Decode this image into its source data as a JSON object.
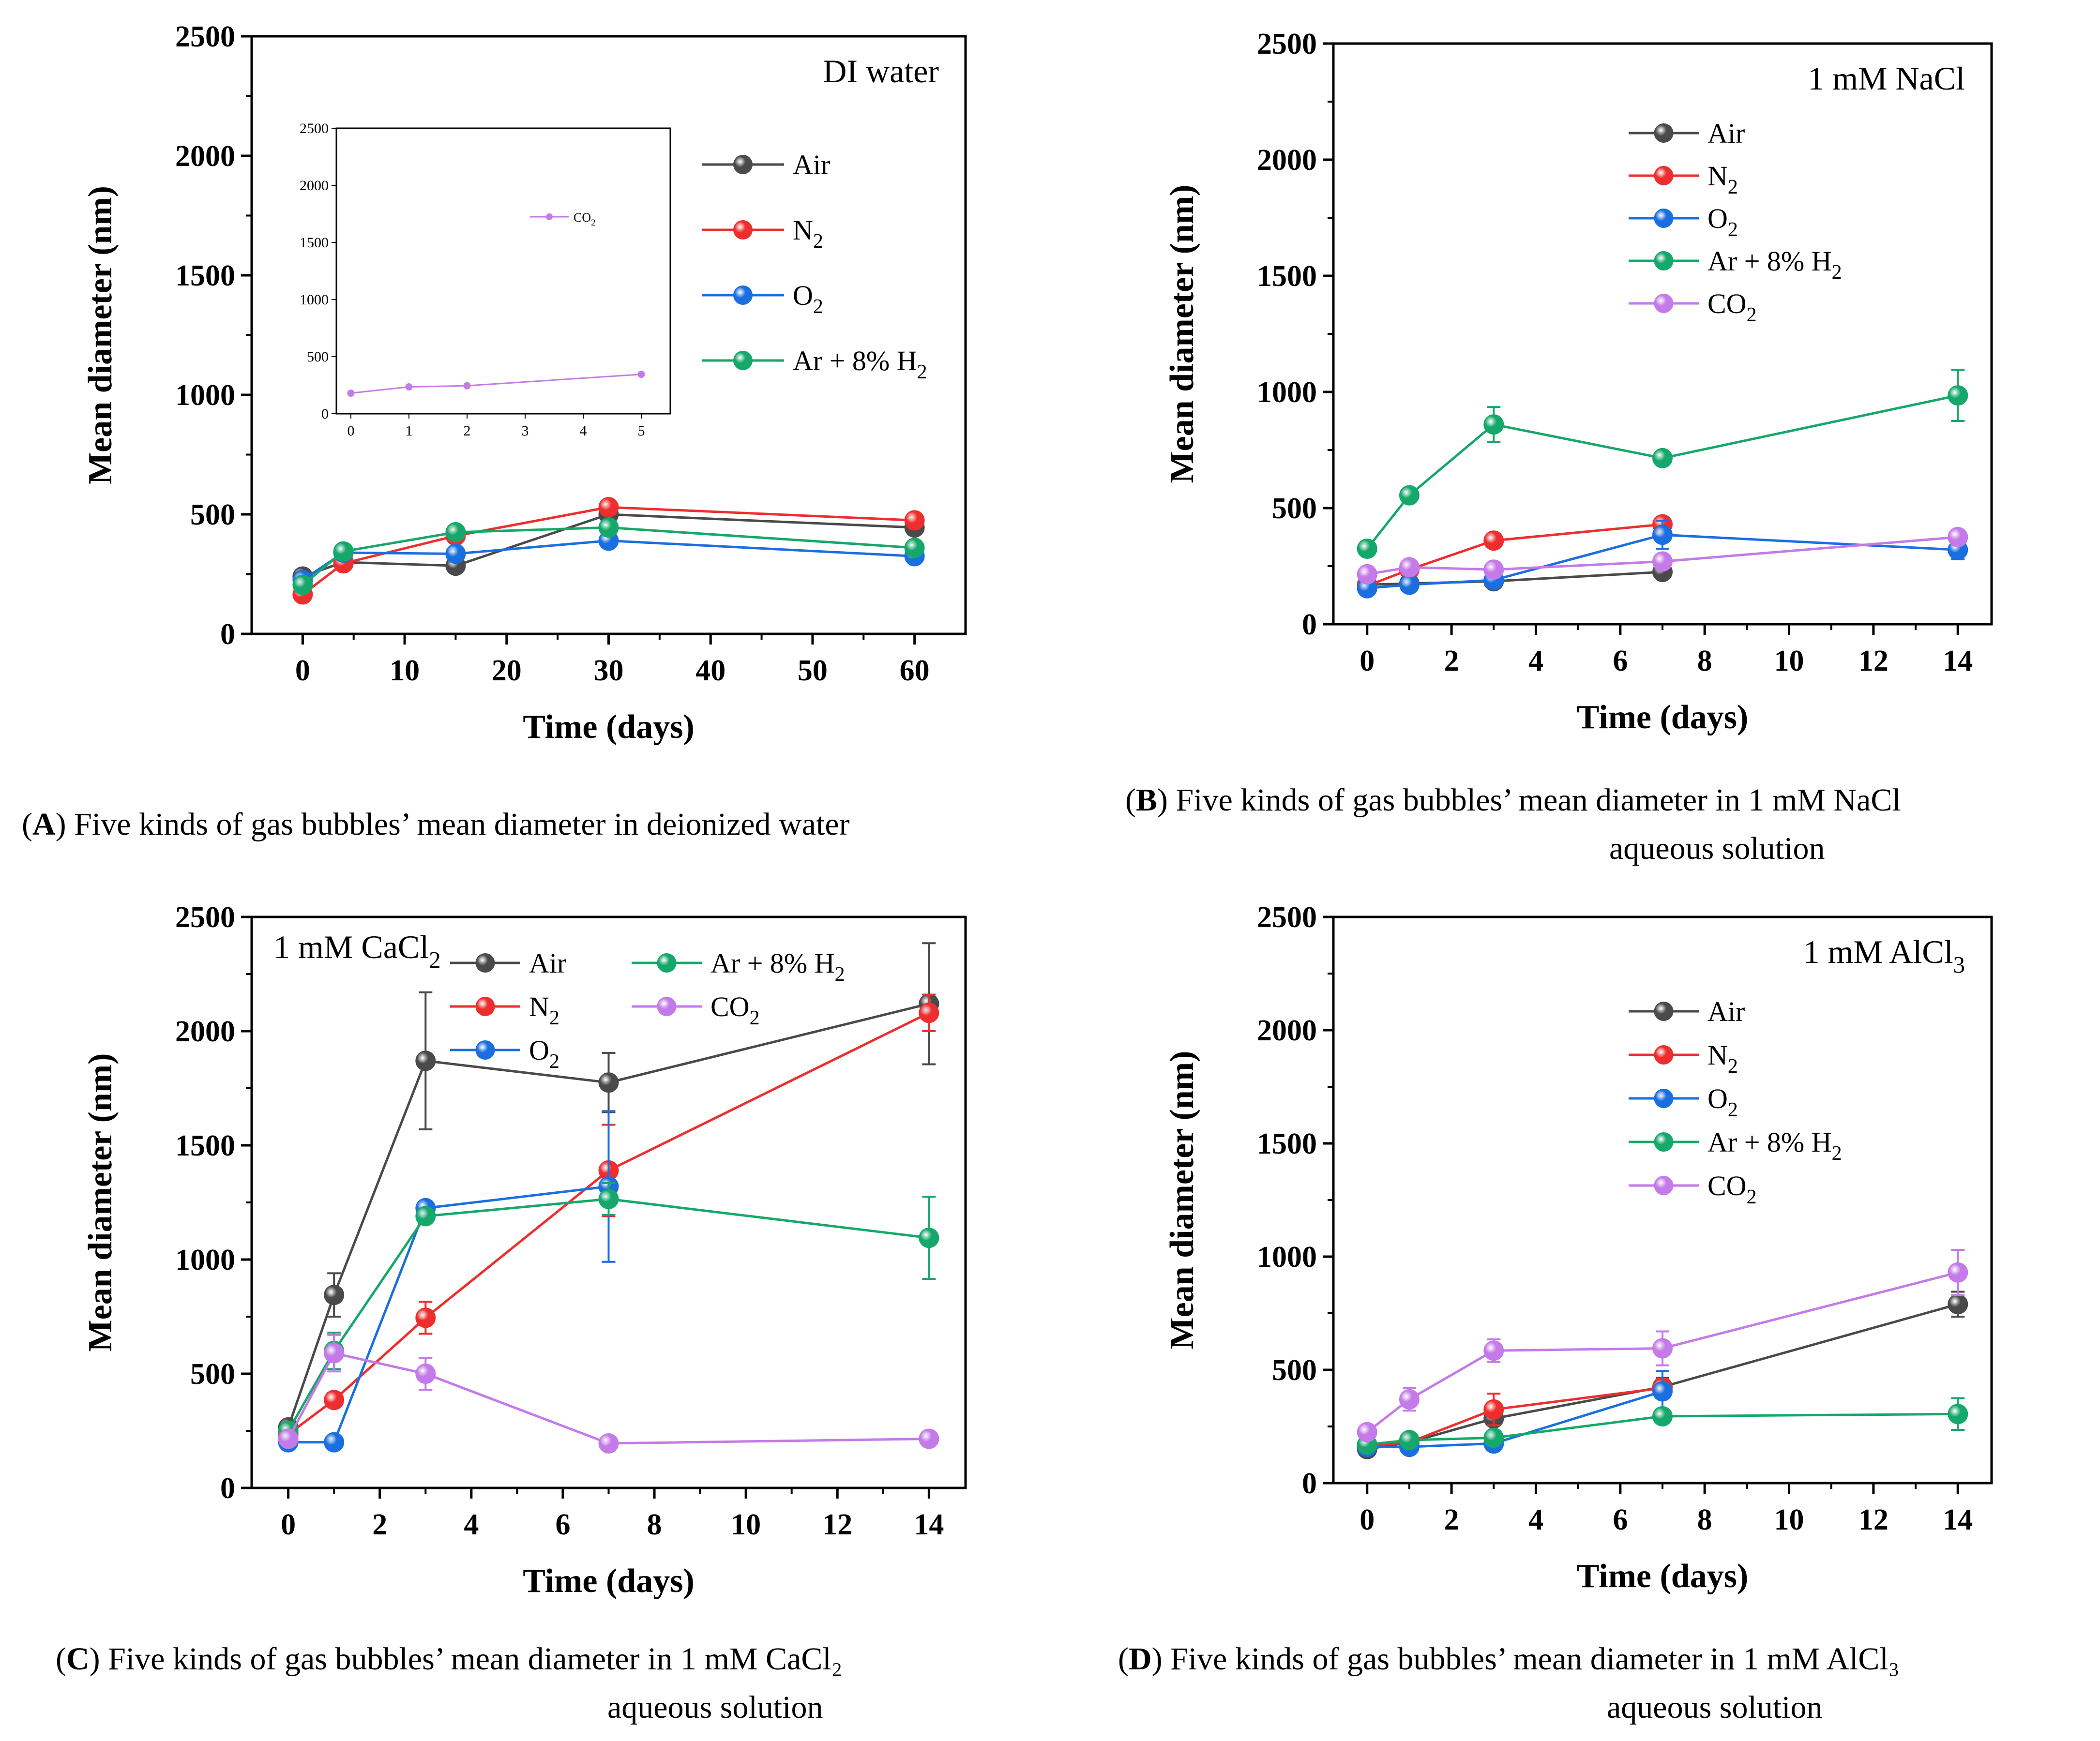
{
  "colors": {
    "Air": "#4a4a4a",
    "N2": "#ee2e2e",
    "O2": "#1a6fe0",
    "ArH2": "#15a86a",
    "CO2": "#c47ae8"
  },
  "chart_data": [
    {
      "id": "A",
      "type": "line",
      "title": "DI water",
      "xlabel": "Time (days)",
      "ylabel": "Mean diameter (nm)",
      "xlim": [
        -5,
        65
      ],
      "ylim": [
        0,
        2500
      ],
      "xticks": [
        "0",
        "10",
        "20",
        "30",
        "40",
        "50",
        "60"
      ],
      "yticks": [
        "0",
        "500",
        "1000",
        "1500",
        "2000",
        "2500"
      ],
      "legend_position": "right",
      "series": [
        {
          "name": "Air",
          "key": "Air",
          "x": [
            0,
            4,
            15,
            30,
            60
          ],
          "y": [
            240,
            300,
            285,
            500,
            445
          ],
          "err": [
            15,
            20,
            15,
            25,
            20
          ]
        },
        {
          "name": "N2",
          "key": "N2",
          "x": [
            0,
            4,
            15,
            30,
            60
          ],
          "y": [
            165,
            295,
            410,
            530,
            475
          ],
          "err": [
            10,
            15,
            20,
            20,
            20
          ]
        },
        {
          "name": "O2",
          "key": "O2",
          "x": [
            0,
            4,
            15,
            30,
            60
          ],
          "y": [
            225,
            340,
            335,
            390,
            325
          ],
          "err": [
            10,
            15,
            15,
            20,
            15
          ]
        },
        {
          "name": "Ar + 8% H2",
          "key": "ArH2",
          "x": [
            0,
            4,
            15,
            30,
            60
          ],
          "y": [
            205,
            345,
            425,
            445,
            360
          ],
          "err": [
            10,
            25,
            20,
            25,
            20
          ]
        }
      ],
      "inset": {
        "xlim": [
          -0.25,
          5.5
        ],
        "ylim": [
          0,
          2500
        ],
        "xticks": [
          "0",
          "1",
          "2",
          "3",
          "4",
          "5"
        ],
        "yticks": [
          "0",
          "500",
          "1000",
          "1500",
          "2000",
          "2500"
        ],
        "series": [
          {
            "name": "CO2",
            "key": "CO2",
            "x": [
              0,
              1,
              2,
              5
            ],
            "y": [
              180,
              235,
              245,
              345
            ]
          }
        ]
      },
      "caption_letter": "A",
      "caption": [
        ") Five kinds of gas bubbles’ mean diameter in deionized water"
      ]
    },
    {
      "id": "B",
      "type": "line",
      "title": "1 mM NaCl",
      "xlabel": "Time (days)",
      "ylabel": "Mean diameter (nm)",
      "xlim": [
        -0.8,
        14.8
      ],
      "ylim": [
        0,
        2500
      ],
      "xticks": [
        "0",
        "2",
        "4",
        "6",
        "8",
        "10",
        "12",
        "14"
      ],
      "yticks": [
        "0",
        "500",
        "1000",
        "1500",
        "2000",
        "2500"
      ],
      "legend_position": "top-center",
      "series": [
        {
          "name": "Air",
          "key": "Air",
          "x": [
            0,
            1,
            3,
            7
          ],
          "y": [
            170,
            175,
            185,
            225
          ],
          "err": [
            15,
            15,
            15,
            20
          ]
        },
        {
          "name": "N2",
          "key": "N2",
          "x": [
            0,
            1,
            3,
            7
          ],
          "y": [
            165,
            235,
            360,
            430
          ],
          "err": [
            15,
            20,
            25,
            20
          ]
        },
        {
          "name": "O2",
          "key": "O2",
          "x": [
            0,
            1,
            3,
            7,
            14
          ],
          "y": [
            155,
            170,
            190,
            385,
            320
          ],
          "err": [
            15,
            15,
            20,
            60,
            40
          ]
        },
        {
          "name": "Ar + 8% H2",
          "key": "ArH2",
          "x": [
            0,
            1,
            3,
            7,
            14
          ],
          "y": [
            325,
            555,
            860,
            715,
            985
          ],
          "err": [
            20,
            25,
            75,
            25,
            110
          ]
        },
        {
          "name": "CO2",
          "key": "CO2",
          "x": [
            0,
            1,
            3,
            7,
            14
          ],
          "y": [
            215,
            245,
            235,
            270,
            375
          ],
          "err": [
            15,
            20,
            20,
            25,
            25
          ]
        }
      ],
      "caption_letter": "B",
      "caption": [
        ") Five kinds of gas bubbles’ mean diameter in 1 mM NaCl",
        "aqueous solution"
      ]
    },
    {
      "id": "C",
      "type": "line",
      "title": "1 mM CaCl2",
      "xlabel": "Time (days)",
      "ylabel": "Mean diameter (nm)",
      "xlim": [
        -0.8,
        14.8
      ],
      "ylim": [
        0,
        2500
      ],
      "xticks": [
        "0",
        "2",
        "4",
        "6",
        "8",
        "10",
        "12",
        "14"
      ],
      "yticks": [
        "0",
        "500",
        "1000",
        "1500",
        "2000",
        "2500"
      ],
      "legend_position": "top",
      "series": [
        {
          "name": "Air",
          "key": "Air",
          "x": [
            0,
            1,
            3,
            7,
            14
          ],
          "y": [
            265,
            845,
            1870,
            1775,
            2120
          ],
          "err": [
            20,
            95,
            300,
            130,
            265
          ]
        },
        {
          "name": "N2",
          "key": "N2",
          "x": [
            0,
            1,
            3,
            7,
            14
          ],
          "y": [
            235,
            385,
            745,
            1390,
            2080
          ],
          "err": [
            20,
            30,
            70,
            200,
            80
          ]
        },
        {
          "name": "O2",
          "key": "O2",
          "x": [
            0,
            1,
            3,
            7,
            14
          ],
          "y": [
            200,
            200,
            1225,
            1320,
            null
          ],
          "err": [
            10,
            10,
            25,
            330,
            0
          ]
        },
        {
          "name": "Ar + 8% H2",
          "key": "ArH2",
          "x": [
            0,
            1,
            3,
            7,
            14
          ],
          "y": [
            250,
            600,
            1190,
            1265,
            1095
          ],
          "err": [
            20,
            80,
            30,
            70,
            180
          ]
        },
        {
          "name": "CO2",
          "key": "CO2",
          "x": [
            0,
            1,
            3,
            7,
            14
          ],
          "y": [
            215,
            590,
            500,
            195,
            215
          ],
          "err": [
            15,
            80,
            70,
            10,
            15
          ]
        }
      ],
      "caption_letter": "C",
      "caption": [
        ") Five kinds of gas bubbles’ mean diameter in 1 mM CaCl₂",
        "aqueous solution"
      ]
    },
    {
      "id": "D",
      "type": "line",
      "title": "1 mM AlCl3",
      "xlabel": "Time (days)",
      "ylabel": "Mean diameter (nm)",
      "xlim": [
        -0.8,
        14.8
      ],
      "ylim": [
        0,
        2500
      ],
      "xticks": [
        "0",
        "2",
        "4",
        "6",
        "8",
        "10",
        "12",
        "14"
      ],
      "yticks": [
        "0",
        "500",
        "1000",
        "1500",
        "2000",
        "2500"
      ],
      "legend_position": "top-center",
      "series": [
        {
          "name": "Air",
          "key": "Air",
          "x": [
            0,
            1,
            3,
            7,
            14
          ],
          "y": [
            150,
            180,
            285,
            425,
            790
          ],
          "err": [
            15,
            20,
            30,
            40,
            55
          ]
        },
        {
          "name": "N2",
          "key": "N2",
          "x": [
            0,
            1,
            3,
            7
          ],
          "y": [
            165,
            180,
            325,
            420
          ],
          "err": [
            15,
            20,
            70,
            40
          ]
        },
        {
          "name": "O2",
          "key": "O2",
          "x": [
            0,
            1,
            3,
            7
          ],
          "y": [
            160,
            160,
            175,
            405
          ],
          "err": [
            15,
            15,
            20,
            90
          ]
        },
        {
          "name": "Ar + 8% H2",
          "key": "ArH2",
          "x": [
            0,
            1,
            3,
            7,
            14
          ],
          "y": [
            170,
            190,
            200,
            295,
            305
          ],
          "err": [
            15,
            20,
            20,
            20,
            70
          ]
        },
        {
          "name": "CO2",
          "key": "CO2",
          "x": [
            0,
            1,
            3,
            7,
            14
          ],
          "y": [
            225,
            370,
            585,
            595,
            930
          ],
          "err": [
            20,
            50,
            50,
            75,
            100
          ]
        }
      ],
      "caption_letter": "D",
      "caption": [
        ") Five kinds of gas bubbles’ mean diameter in 1 mM AlCl₃",
        "aqueous solution"
      ]
    }
  ]
}
